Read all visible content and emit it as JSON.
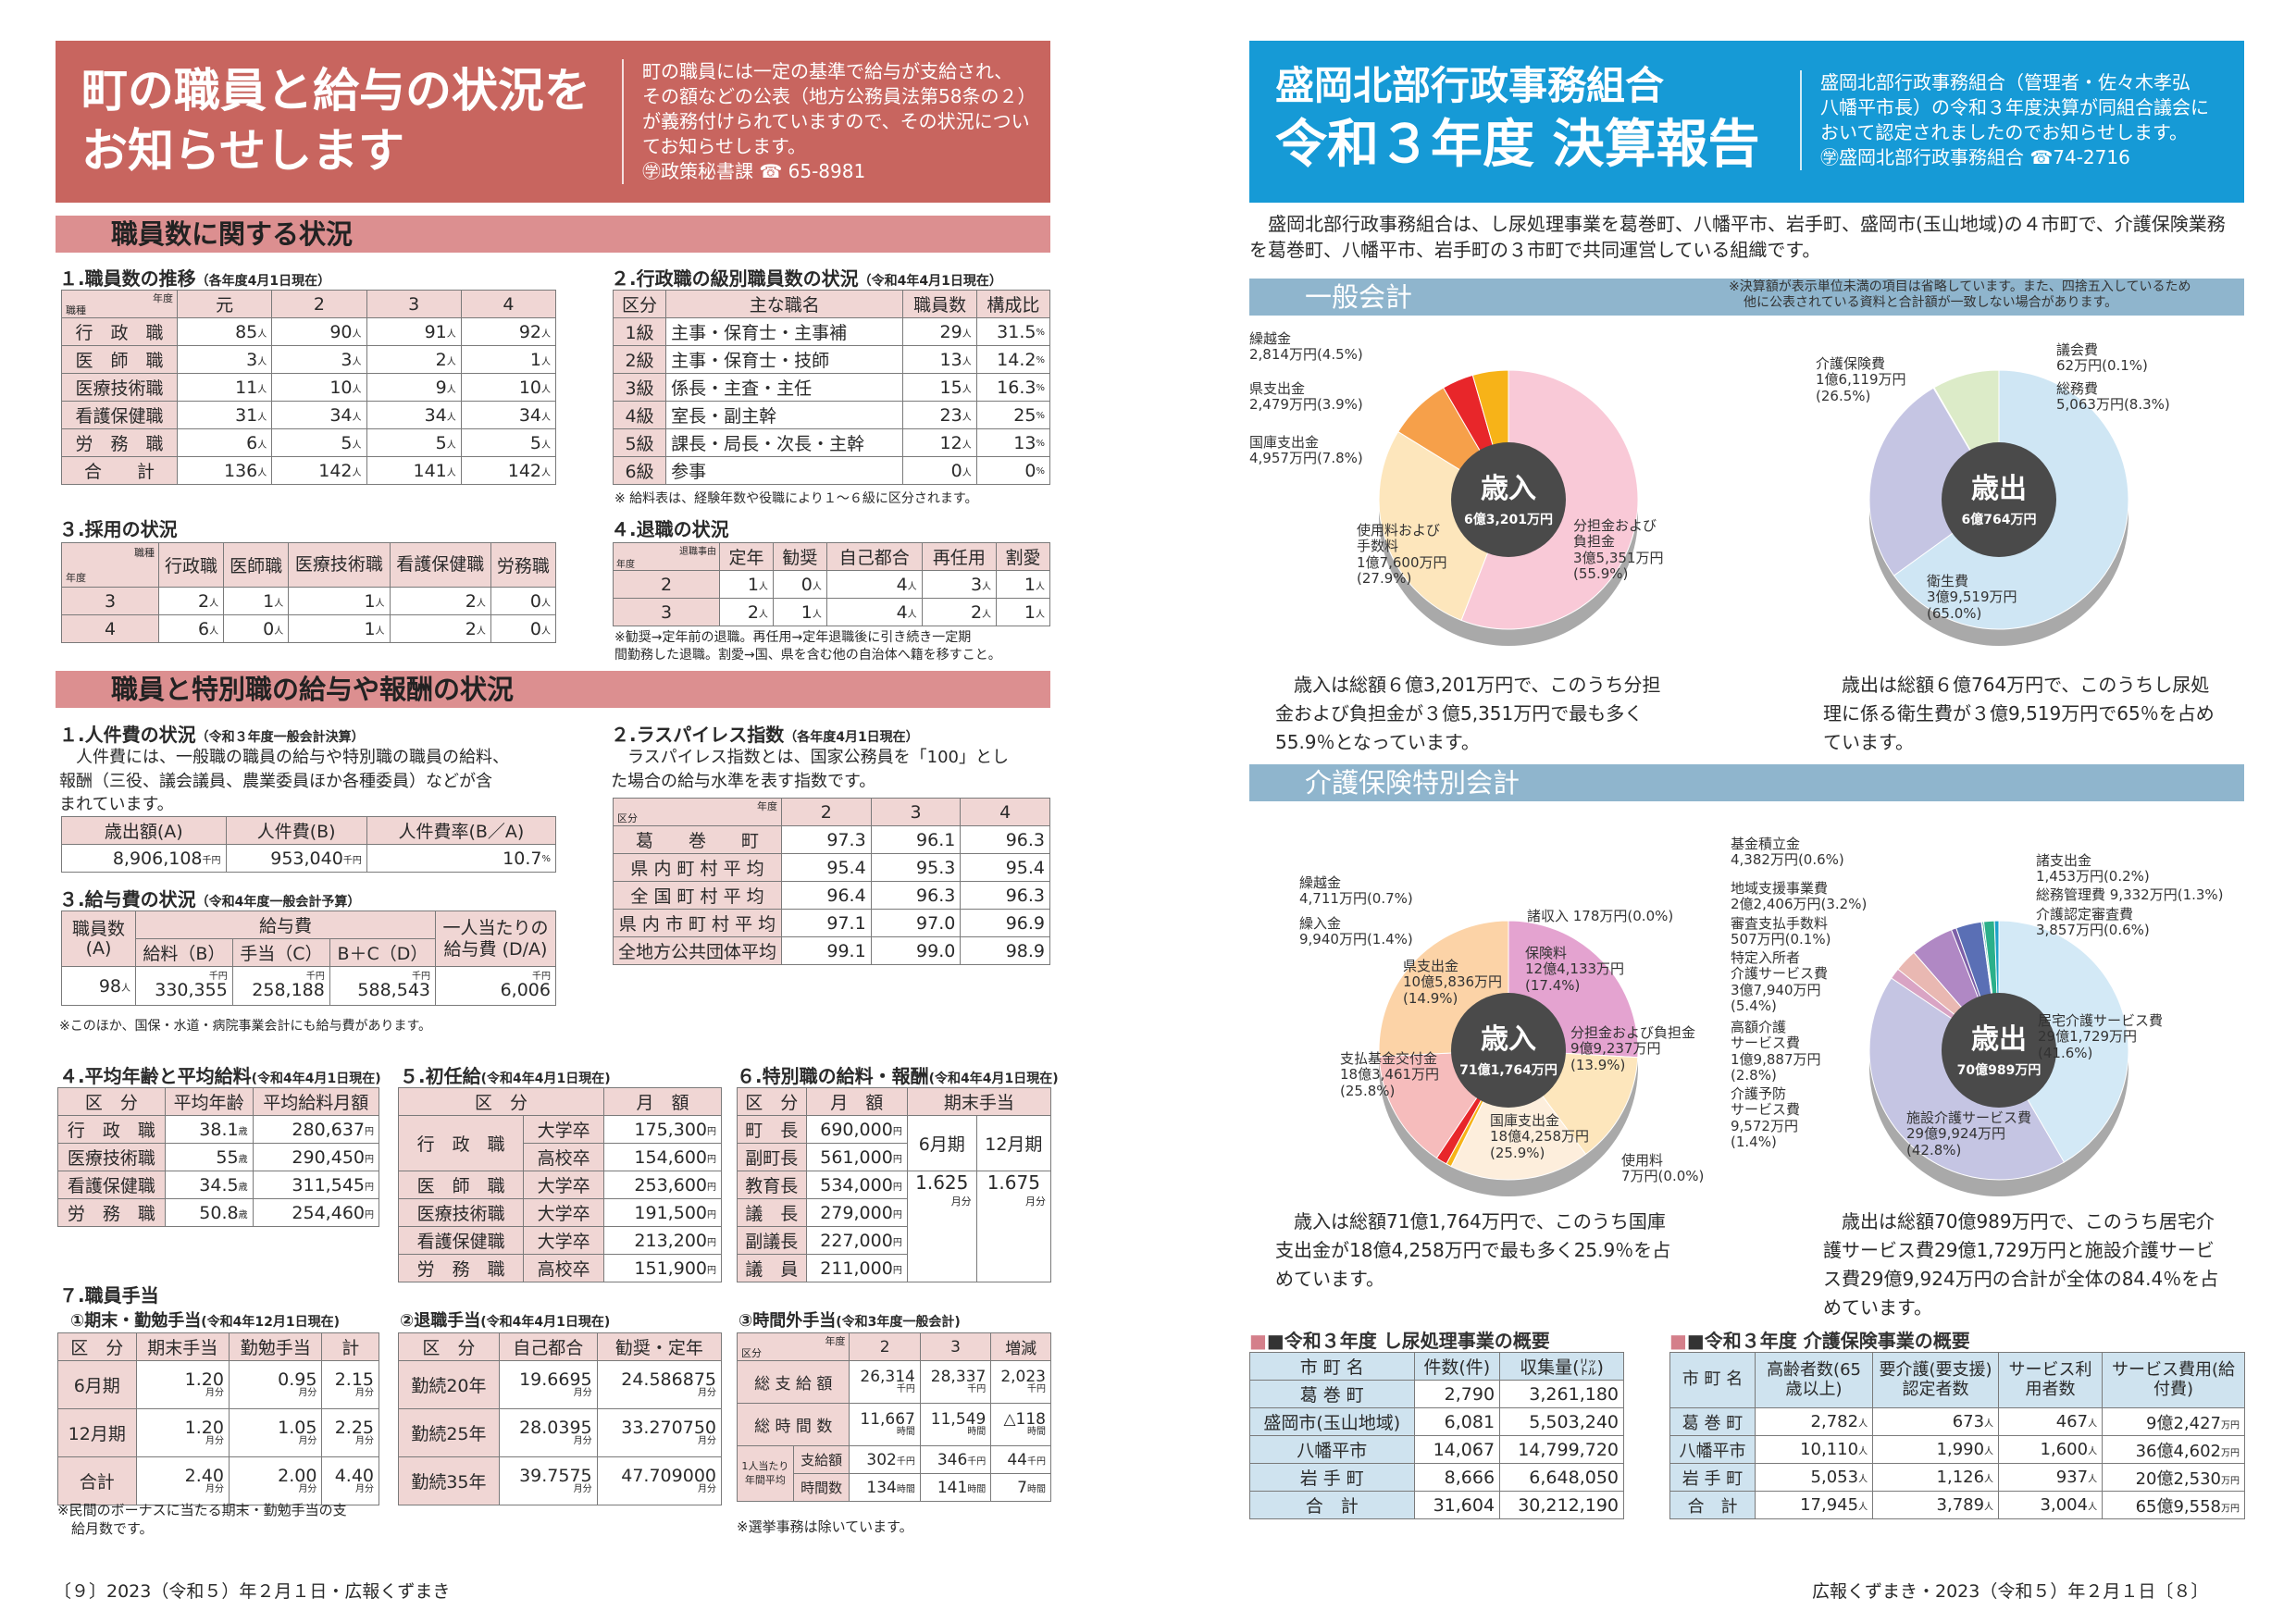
{
  "left": {
    "banner": {
      "title1": "町の職員と給与の状況を",
      "title2": "お知らせします",
      "desc": [
        "町の職員には一定の基準で給与が支給され、",
        "その額などの公表（地方公務員法第58条の２）",
        "が義務付けられていますので、その状況につい",
        "てお知らせします。",
        "㊫政策秘書課 ☎ 65-8981"
      ]
    },
    "section1": "職員数に関する状況",
    "staff": {
      "title": "１.職員数の推移",
      "sub": "（各年度4月1日現在）",
      "corner_top": "年度",
      "corner_bottom": "職種",
      "years": [
        "元",
        "2",
        "3",
        "4"
      ],
      "rows": [
        {
          "label": "行　政　職",
          "v": [
            "85",
            "90",
            "91",
            "92"
          ]
        },
        {
          "label": "医　師　職",
          "v": [
            "3",
            "3",
            "2",
            "1"
          ]
        },
        {
          "label": "医療技術職",
          "v": [
            "11",
            "10",
            "9",
            "10"
          ]
        },
        {
          "label": "看護保健職",
          "v": [
            "31",
            "34",
            "34",
            "34"
          ]
        },
        {
          "label": "労　務　職",
          "v": [
            "6",
            "5",
            "5",
            "5"
          ]
        },
        {
          "label": "合　　計",
          "v": [
            "136",
            "142",
            "141",
            "142"
          ]
        }
      ],
      "unit": "人"
    },
    "grade": {
      "title": "２.行政職の級別職員数の状況",
      "sub": "（令和4年4月1日現在）",
      "headers": [
        "区分",
        "主な職名",
        "職員数",
        "構成比"
      ],
      "rows": [
        [
          "1級",
          "主事・保育士・主事補",
          "29",
          "31.5"
        ],
        [
          "2級",
          "主事・保育士・技師",
          "13",
          "14.2"
        ],
        [
          "3級",
          "係長・主査・主任",
          "15",
          "16.3"
        ],
        [
          "4級",
          "室長・副主幹",
          "23",
          "25"
        ],
        [
          "5級",
          "課長・局長・次長・主幹",
          "12",
          "13"
        ],
        [
          "6級",
          "参事",
          "0",
          "0"
        ]
      ],
      "unit1": "人",
      "unit2": "%",
      "note": "※ 給料表は、経験年数や役職により１～６級に区分されます。"
    },
    "hire": {
      "title": "３.採用の状況",
      "corner_top": "職種",
      "corner_bottom": "年度",
      "headers": [
        "行政職",
        "医師職",
        "医療技術職",
        "看護保健職",
        "労務職"
      ],
      "rows": [
        {
          "y": "3",
          "v": [
            "2",
            "1",
            "1",
            "2",
            "0"
          ]
        },
        {
          "y": "4",
          "v": [
            "6",
            "0",
            "1",
            "2",
            "0"
          ]
        }
      ],
      "unit": "人"
    },
    "retire": {
      "title": "４.退職の状況",
      "corner_top": "退職事由",
      "corner_bottom": "年度",
      "headers": [
        "定年",
        "勧奨",
        "自己都合",
        "再任用",
        "割愛"
      ],
      "rows": [
        {
          "y": "2",
          "v": [
            "1",
            "0",
            "4",
            "3",
            "1"
          ]
        },
        {
          "y": "3",
          "v": [
            "2",
            "1",
            "4",
            "2",
            "1"
          ]
        }
      ],
      "unit": "人",
      "note": [
        "※勧奨→定年前の退職。再任用→定年退職後に引き続き一定期",
        "間勤務した退職。割愛→国、県を含む他の自治体へ籍を移すこと。"
      ]
    },
    "section2": "職員と特別職の給与や報酬の状況",
    "labor": {
      "title": "１.人件費の状況",
      "sub": "（令和３年度一般会計決算）",
      "text": [
        "　人件費には、一般職の職員の給与や特別職の職員の給料、",
        "報酬（三役、議会議員、農業委員ほか各種委員）などが含",
        "まれています。"
      ],
      "headers": [
        "歳出額(A)",
        "人件費(B)",
        "人件費率(B／A)"
      ],
      "values": [
        "8,906,108",
        "953,040",
        "10.7"
      ],
      "units": [
        "千円",
        "千円",
        "%"
      ]
    },
    "lasp": {
      "title": "２.ラスパイレス指数",
      "sub": "（各年度4月1日現在）",
      "text": [
        "　ラスパイレス指数とは、国家公務員を「100」とし",
        "た場合の給与水準を表す指数です。"
      ],
      "corner_top": "年度",
      "corner_bottom": "区分",
      "years": [
        "2",
        "3",
        "4"
      ],
      "rows": [
        {
          "label": "葛　　巻　　町",
          "v": [
            "97.3",
            "96.1",
            "96.3"
          ]
        },
        {
          "label": "県 内 町 村 平 均",
          "v": [
            "95.4",
            "95.3",
            "95.4"
          ]
        },
        {
          "label": "全 国 町 村 平 均",
          "v": [
            "96.4",
            "96.3",
            "96.3"
          ]
        },
        {
          "label": "県 内 市 町 村 平 均",
          "v": [
            "97.1",
            "97.0",
            "96.9"
          ]
        },
        {
          "label": "全地方公共団体平均",
          "v": [
            "99.1",
            "99.0",
            "98.9"
          ]
        }
      ]
    },
    "salary": {
      "title": "３.給与費の状況",
      "sub": "（令和4年度一般会計予算）",
      "h1": "職員数(A)",
      "h2": "給与費",
      "h3": "一人当たりの給与費 (D/A)",
      "h2a": "給料（B）",
      "h2b": "手当（C）",
      "h2c": "B＋C（D）",
      "values": [
        "98",
        "330,355",
        "258,188",
        "588,543",
        "6,006"
      ],
      "unit0": "人",
      "unit": "千円",
      "note": "※このほか、国保・水道・病院事業会計にも給与費があります。"
    },
    "avg": {
      "title": "４.平均年齢と平均給料",
      "sub": "(令和4年4月1日現在)",
      "headers": [
        "区　分",
        "平均年齢",
        "平均給料月額"
      ],
      "rows": [
        [
          "行　政　職",
          "38.1",
          "280,637"
        ],
        [
          "医療技術職",
          "55",
          "290,450"
        ],
        [
          "看護保健職",
          "34.5",
          "311,545"
        ],
        [
          "労　務　職",
          "50.8",
          "254,460"
        ]
      ],
      "u1": "歳",
      "u2": "円"
    },
    "start": {
      "title": "５.初任給",
      "sub": "(令和4年4月1日現在)",
      "headers": [
        "区　分",
        "月　額"
      ],
      "rows": [
        [
          "行　政　職",
          "大学卒",
          "175,300"
        ],
        [
          "",
          "高校卒",
          "154,600"
        ],
        [
          "医　師　職",
          "大学卒",
          "253,600"
        ],
        [
          "医療技術職",
          "大学卒",
          "191,500"
        ],
        [
          "看護保健職",
          "大学卒",
          "213,200"
        ],
        [
          "労　務　職",
          "高校卒",
          "151,900"
        ]
      ],
      "unit": "円"
    },
    "special": {
      "title": "６.特別職の給料・報酬",
      "sub": "(令和4年4月1日現在)",
      "headers": [
        "区　分",
        "月　額",
        "期末手当"
      ],
      "rows": [
        [
          "町　長",
          "690,000"
        ],
        [
          "副町長",
          "561,000"
        ],
        [
          "教育長",
          "534,000"
        ],
        [
          "議　長",
          "279,000"
        ],
        [
          "副議長",
          "227,000"
        ],
        [
          "議　員",
          "211,000"
        ]
      ],
      "unit": "円",
      "june": "6月期",
      "dec": "12月期",
      "june_v": "1.625",
      "dec_v": "1.675",
      "mon": "月分"
    },
    "allow": {
      "title": "７.職員手当",
      "a": {
        "title": "①期末・勤勉手当",
        "sub": "(令和4年12月1日現在)",
        "headers": [
          "区　分",
          "期末手当",
          "勤勉手当",
          "計"
        ],
        "rows": [
          [
            "6月期",
            "1.20",
            "0.95",
            "2.15"
          ],
          [
            "12月期",
            "1.20",
            "1.05",
            "2.25"
          ],
          [
            "合計",
            "2.40",
            "2.00",
            "4.40"
          ]
        ],
        "unit": "月分",
        "note": [
          "※民間のボーナスに当たる期末・勤勉手当の支",
          "　給月数です。"
        ]
      },
      "b": {
        "title": "②退職手当",
        "sub": "(令和4年4月1日現在)",
        "headers": [
          "区　分",
          "自己都合",
          "勧奨・定年"
        ],
        "rows": [
          [
            "勤続20年",
            "19.6695",
            "24.586875"
          ],
          [
            "勤続25年",
            "28.0395",
            "33.270750"
          ],
          [
            "勤続35年",
            "39.7575",
            "47.709000"
          ]
        ],
        "unit": "月分"
      },
      "c": {
        "title": "③時間外手当",
        "sub": "(令和3年度一般会計)",
        "corner_top": "年度",
        "corner_bottom": "区分",
        "years": [
          "2",
          "3",
          "増減"
        ],
        "rows": [
          {
            "label": "総 支 給 額",
            "v": [
              "26,314",
              "28,337",
              "2,023"
            ],
            "u": "千円"
          },
          {
            "label": "総 時 間 数",
            "v": [
              "11,667",
              "11,549",
              "△118"
            ],
            "u": "時間"
          }
        ],
        "pp": "1人当たり",
        "pp2": "年間平均",
        "r3a": "支給額",
        "r3b": "時間数",
        "r3": [
          "302",
          "346",
          "44"
        ],
        "r4": [
          "134",
          "141",
          "7"
        ],
        "note": "※選挙事務は除いています。"
      }
    },
    "footer": "〔９〕2023（令和５）年２月１日・広報くずまき"
  },
  "right": {
    "banner": {
      "title1": "盛岡北部行政事務組合",
      "title2": "令和３年度 決算報告",
      "desc": [
        "盛岡北部行政事務組合（管理者・佐々木孝弘",
        "八幡平市長）の令和３年度決算が同組合議会に",
        "おいて認定されましたのでお知らせします。",
        "㊫盛岡北部行政事務組合 ☎74-2716"
      ]
    },
    "intro": [
      "　盛岡北部行政事務組合は、し尿処理事業を葛巻町、八幡平市、岩手町、盛岡市(玉山地域)の４市町で、介護保険業務",
      "を葛巻町、八幡平市、岩手町の３市町で共同運営している組織です。"
    ],
    "general": {
      "head": "一般会計",
      "note": [
        "※決算額が表示単位未満の項目は省略しています。また、四捨五入しているため",
        "他に公表されている資料と合計額が一致しない場合があります。"
      ],
      "rev": {
        "label": "歳入",
        "total": "6億3,201万円",
        "text": [
          "　歳入は総額６億3,201万円で、このうち分担",
          "金および負担金が３億5,351万円で最も多く",
          "55.9％となっています。"
        ]
      },
      "exp": {
        "label": "歳出",
        "total": "6億764万円",
        "text": [
          "　歳出は総額６億764万円で、このうちし尿処",
          "理に係る衛生費が３億9,519万円で65％を占め",
          "ています。"
        ]
      }
    },
    "kaigo": {
      "head": "介護保険特別会計",
      "rev": {
        "label": "歳入",
        "total": "71億1,764万円",
        "text": [
          "　歳入は総額71億1,764万円で、このうち国庫",
          "支出金が18億4,258万円で最も多く25.9％を占",
          "めています。"
        ]
      },
      "exp": {
        "label": "歳出",
        "total": "70億989万円",
        "text": [
          "　歳出は総額70億989万円で、このうち居宅介",
          "護サービス費29億1,729万円と施設介護サービ",
          "ス費29億9,924万円の合計が全体の84.4％を占",
          "めています。"
        ]
      }
    },
    "shinyo": {
      "title": "■令和３年度 し尿処理事業の概要",
      "headers": [
        "市 町 名",
        "件数(件)",
        "収集量(㍑)"
      ],
      "rows": [
        [
          "葛 巻 町",
          "2,790",
          "3,261,180"
        ],
        [
          "盛岡市(玉山地域)",
          "6,081",
          "5,503,240"
        ],
        [
          "八幡平市",
          "14,067",
          "14,799,720"
        ],
        [
          "岩 手 町",
          "8,666",
          "6,648,050"
        ],
        [
          "合　計",
          "31,604",
          "30,212,190"
        ]
      ]
    },
    "kaigo_over": {
      "title": "■令和３年度 介護保険事業の概要",
      "headers": [
        "市 町 名",
        "高齢者数(65歳以上)",
        "要介護(要支援)認定者数",
        "サービス利用者数",
        "サービス費用(給付費)"
      ],
      "rows": [
        [
          "葛 巻 町",
          "2,782",
          "673",
          "467",
          "9億2,427"
        ],
        [
          "八幡平市",
          "10,110",
          "1,990",
          "1,600",
          "36億4,602"
        ],
        [
          "岩 手 町",
          "5,053",
          "1,126",
          "937",
          "20億2,530"
        ],
        [
          "合　計",
          "17,945",
          "3,789",
          "3,004",
          "65億9,558"
        ]
      ],
      "unit": "人",
      "unit2": "万円"
    },
    "footer": "広報くずまき・2023（令和５）年２月１日〔８〕"
  },
  "chart_data": [
    {
      "type": "pie",
      "title": "一般会計 歳入",
      "center": "歳入 6億3,201万円",
      "unit": "万円",
      "slices": [
        {
          "label": "分担金および負担金",
          "value": 35351,
          "percent": 55.9,
          "color": "#f9c9d7"
        },
        {
          "label": "使用料および手数料",
          "value": 17600,
          "percent": 27.9,
          "color": "#fde6bc"
        },
        {
          "label": "国庫支出金",
          "value": 4957,
          "percent": 7.8,
          "color": "#f6a04a"
        },
        {
          "label": "県支出金",
          "value": 2479,
          "percent": 3.9,
          "color": "#e8262a"
        },
        {
          "label": "繰越金",
          "value": 2814,
          "percent": 4.5,
          "color": "#f7b318"
        }
      ]
    },
    {
      "type": "pie",
      "title": "一般会計 歳出",
      "center": "歳出 6億764万円",
      "unit": "万円",
      "slices": [
        {
          "label": "衛生費",
          "value": 39519,
          "percent": 65.0,
          "color": "#cfe6f4"
        },
        {
          "label": "介護保険費",
          "value": 16119,
          "percent": 26.5,
          "color": "#c5c5e3"
        },
        {
          "label": "議会費",
          "value": 62,
          "percent": 0.1,
          "color": "#9ad39a"
        },
        {
          "label": "総務費",
          "value": 5063,
          "percent": 8.3,
          "color": "#dcebc8"
        }
      ]
    },
    {
      "type": "pie",
      "title": "介護保険特別会計 歳入",
      "center": "歳入 71億1,764万円",
      "unit": "万円",
      "slices": [
        {
          "label": "国庫支出金",
          "value": 184258,
          "percent": 25.9,
          "color": "#e4a3d0"
        },
        {
          "label": "使用料",
          "value": 0,
          "percent": 0.0,
          "color": "#e4a3d0"
        },
        {
          "label": "分担金および負担金",
          "value": 99237,
          "percent": 13.9,
          "color": "#fde6bc"
        },
        {
          "label": "保険料",
          "value": 124133,
          "percent": 17.4,
          "color": "#fdeedc"
        },
        {
          "label": "諸収入",
          "value": 178,
          "percent": 0.0,
          "color": "#999999"
        },
        {
          "label": "繰越金",
          "value": 4711,
          "percent": 0.7,
          "color": "#f7b318"
        },
        {
          "label": "繰入金",
          "value": 9940,
          "percent": 1.4,
          "color": "#e8262a"
        },
        {
          "label": "県支出金",
          "value": 105836,
          "percent": 14.9,
          "color": "#f6bcbc"
        },
        {
          "label": "支払基金交付金",
          "value": 183461,
          "percent": 25.8,
          "color": "#fcd3a7"
        }
      ]
    },
    {
      "type": "pie",
      "title": "介護保険特別会計 歳出",
      "center": "歳出 70億989万円",
      "unit": "万円",
      "slices": [
        {
          "label": "居宅介護サービス費",
          "value": 291729,
          "percent": 41.6,
          "color": "#d3e9f6"
        },
        {
          "label": "施設介護サービス費",
          "value": 299924,
          "percent": 42.8,
          "color": "#c5c5e3"
        },
        {
          "label": "介護予防サービス費",
          "value": 9572,
          "percent": 1.4,
          "color": "#d9a4c4"
        },
        {
          "label": "高額介護サービス費",
          "value": 19887,
          "percent": 2.8,
          "color": "#e9b8b2"
        },
        {
          "label": "特定入所者介護サービス費",
          "value": 37940,
          "percent": 5.4,
          "color": "#b088c4"
        },
        {
          "label": "基金積立金",
          "value": 4382,
          "percent": 0.6,
          "color": "#7d5fa8"
        },
        {
          "label": "地域支援事業費",
          "value": 22406,
          "percent": 3.2,
          "color": "#5a6fb5"
        },
        {
          "label": "審査支払手数料",
          "value": 507,
          "percent": 0.1,
          "color": "#3a8fc0"
        },
        {
          "label": "諸支出金",
          "value": 1453,
          "percent": 0.2,
          "color": "#1c9f8c"
        },
        {
          "label": "総務管理費",
          "value": 9332,
          "percent": 1.3,
          "color": "#2bb08a"
        },
        {
          "label": "介護認定審査費",
          "value": 3857,
          "percent": 0.6,
          "color": "#1da2c9"
        }
      ]
    }
  ]
}
